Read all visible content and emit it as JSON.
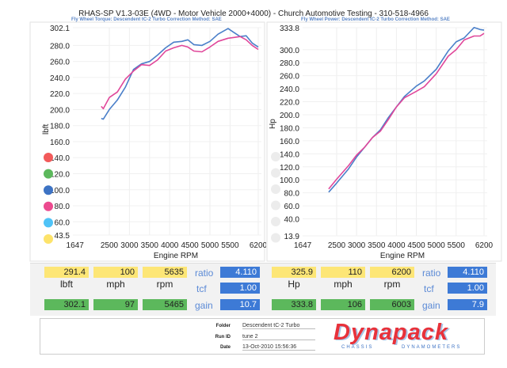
{
  "header": {
    "title": "RHAS-SP V1.3-03E  (4WD - Motor Vehicle 2000+4000) - Church Automotive Testing - 310-518-4966",
    "left_subtitle": "Fly Wheel Torque: Descendent tC-2 Turbo      Correction Method: SAE",
    "right_subtitle": "Fly Wheel Power: Descendent tC-2 Turbo      Correction Method: SAE"
  },
  "legend_colors": [
    "#f25a5a",
    "#5cb85c",
    "#3d73c4",
    "#ec4a8f",
    "#4fc3f7",
    "#fde36a"
  ],
  "chart_data": [
    {
      "type": "line",
      "xlabel": "Engine RPM",
      "ylabel": "lbft",
      "xlim": [
        1647,
        6200
      ],
      "ylim": [
        43.5,
        302.1
      ],
      "xticks": [
        "1647",
        "2500",
        "3000",
        "3500",
        "4000",
        "4500",
        "5000",
        "5500",
        "6200"
      ],
      "yticks": [
        "302.1",
        "280.0",
        "260.0",
        "240.0",
        "220.0",
        "200.0",
        "180.0",
        "160.0",
        "140.0",
        "120.0",
        "100.0",
        "80.0",
        "60.0",
        "43.5"
      ],
      "grid": true,
      "series": [
        {
          "color": "#4a7fc9",
          "x": [
            2300,
            2350,
            2500,
            2700,
            2900,
            3100,
            3300,
            3500,
            3700,
            3900,
            4100,
            4300,
            4450,
            4600,
            4800,
            5000,
            5200,
            5450,
            5600,
            5750,
            5900,
            6050,
            6200
          ],
          "y": [
            189,
            188,
            200,
            212,
            228,
            250,
            257,
            260,
            268,
            277,
            284,
            285,
            287,
            281,
            280,
            285,
            294,
            301,
            296,
            291,
            292,
            283,
            278
          ]
        },
        {
          "color": "#e0479a",
          "x": [
            2300,
            2350,
            2500,
            2700,
            2900,
            3100,
            3300,
            3500,
            3700,
            3900,
            4100,
            4300,
            4450,
            4600,
            4800,
            5000,
            5200,
            5450,
            5600,
            5750,
            5900,
            6050,
            6200
          ],
          "y": [
            204,
            201,
            215,
            222,
            238,
            248,
            256,
            255,
            262,
            273,
            277,
            280,
            278,
            273,
            272,
            278,
            285,
            289,
            290,
            291,
            287,
            280,
            275
          ]
        }
      ]
    },
    {
      "type": "line",
      "xlabel": "Engine RPM",
      "ylabel": "Hp",
      "xlim": [
        1647,
        6200
      ],
      "ylim": [
        13.9,
        333.8
      ],
      "xticks": [
        "1647",
        "2500",
        "3000",
        "3500",
        "4000",
        "4500",
        "5000",
        "5500",
        "6200"
      ],
      "yticks": [
        "333.8",
        "300.0",
        "280.0",
        "260.0",
        "240.0",
        "220.0",
        "200.0",
        "180.0",
        "160.0",
        "140.0",
        "120.0",
        "100.0",
        "80.0",
        "60.0",
        "40.0",
        "13.9"
      ],
      "grid": true,
      "series": [
        {
          "color": "#4a7fc9",
          "x": [
            2300,
            2500,
            2800,
            3000,
            3200,
            3400,
            3600,
            3800,
            4000,
            4200,
            4500,
            4700,
            5000,
            5300,
            5500,
            5700,
            5950,
            6100,
            6200
          ],
          "y": [
            81,
            95,
            117,
            135,
            150,
            165,
            177,
            196,
            212,
            228,
            244,
            252,
            270,
            298,
            312,
            318,
            334,
            331,
            330
          ]
        },
        {
          "color": "#e0479a",
          "x": [
            2300,
            2500,
            2800,
            3000,
            3200,
            3400,
            3600,
            3800,
            4000,
            4200,
            4500,
            4700,
            5000,
            5300,
            5500,
            5700,
            5950,
            6100,
            6200
          ],
          "y": [
            86,
            101,
            122,
            138,
            150,
            165,
            175,
            193,
            212,
            226,
            236,
            243,
            263,
            290,
            300,
            315,
            321,
            321,
            325
          ]
        }
      ]
    }
  ],
  "torque_panel": {
    "peak": [
      "291.4",
      "100",
      "5635"
    ],
    "units": [
      "lbft",
      "mph",
      "rpm"
    ],
    "best": [
      "302.1",
      "97",
      "5465"
    ],
    "ratio_label": "ratio",
    "ratio": "4.110",
    "tcf_label": "tcf",
    "tcf": "1.00",
    "gain_label": "gain",
    "gain": "10.7"
  },
  "power_panel": {
    "peak": [
      "325.9",
      "110",
      "6200"
    ],
    "units": [
      "Hp",
      "mph",
      "rpm"
    ],
    "best": [
      "333.8",
      "106",
      "6003"
    ],
    "ratio_label": "ratio",
    "ratio": "4.110",
    "tcf_label": "tcf",
    "tcf": "1.00",
    "gain_label": "gain",
    "gain": "7.9"
  },
  "footer": {
    "folder_label": "Folder",
    "folder": "Descendent tC-2 Turbo",
    "run_label": "Run ID",
    "run": "tune 2",
    "date_label": "Date",
    "date": "13-Oct-2010  15:56:36",
    "logo": "Dynapack",
    "logo_sub1": "CHASSIS",
    "logo_sub2": "DYNAMOMETERS"
  }
}
